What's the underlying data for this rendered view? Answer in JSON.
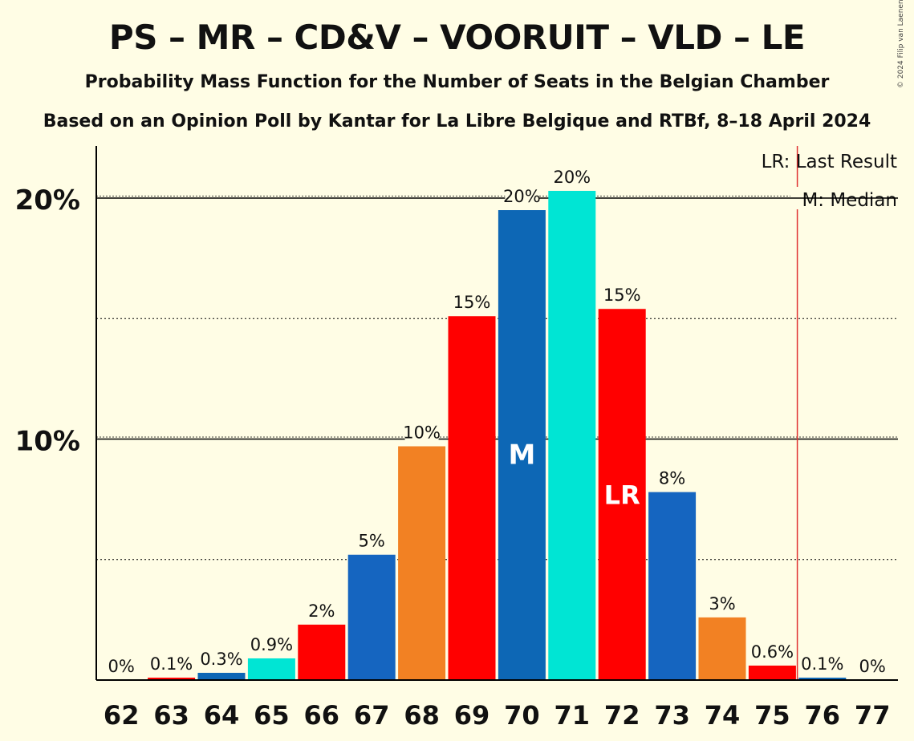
{
  "title": "PS – MR – CD&V – VOORUIT – VLD – LE",
  "subtitle": "Probability Mass Function for the Number of Seats in the Belgian Chamber",
  "subtitle2": "Based on an Opinion Poll by Kantar for La Libre Belgique and RTBf, 8–18 April 2024",
  "copyright": "© 2024 Filip van Laenen",
  "legend": {
    "last_result": "LR: Last Result",
    "median": "M: Median"
  },
  "colors": {
    "background": "#FFFDE5",
    "ps_red": "#FF0000",
    "mr_blue": "#1565C0",
    "cdv_orange": "#F28123",
    "vooruit_red": "#FF0000",
    "vld_blue": "#0D67B5",
    "le_cyan": "#00E5D4",
    "last_result_line": "#E03030"
  },
  "chart_data": {
    "type": "bar",
    "categories": [
      "62",
      "63",
      "64",
      "65",
      "66",
      "67",
      "68",
      "69",
      "70",
      "71",
      "72",
      "73",
      "74",
      "75",
      "76",
      "77"
    ],
    "values": [
      0,
      0.1,
      0.3,
      0.9,
      2.3,
      5.2,
      9.7,
      15.1,
      19.5,
      20.3,
      15.4,
      7.8,
      2.6,
      0.6,
      0.1,
      0
    ],
    "labels": [
      "0%",
      "0.1%",
      "0.3%",
      "0.9%",
      "2%",
      "5%",
      "10%",
      "15%",
      "20%",
      "20%",
      "15%",
      "8%",
      "3%",
      "0.6%",
      "0.1%",
      "0%"
    ],
    "colors": [
      "#0D67B5",
      "#FF0000",
      "#0D67B5",
      "#00E5D4",
      "#FF0000",
      "#1565C0",
      "#F28123",
      "#FF0000",
      "#0D67B5",
      "#00E5D4",
      "#FF0000",
      "#1565C0",
      "#F28123",
      "#FF0000",
      "#0D67B5",
      "#0D67B5"
    ],
    "ytick_labels": [
      "10%",
      "20%"
    ],
    "yticks": [
      10,
      20
    ],
    "ylim": [
      0,
      22
    ],
    "dotted_gridlines": [
      5,
      15
    ],
    "median_seat": "70",
    "median_label": "M",
    "last_result_seat": "72",
    "last_result_label": "LR",
    "majority_line_after_seat": "75",
    "xlabel": "",
    "ylabel": ""
  }
}
